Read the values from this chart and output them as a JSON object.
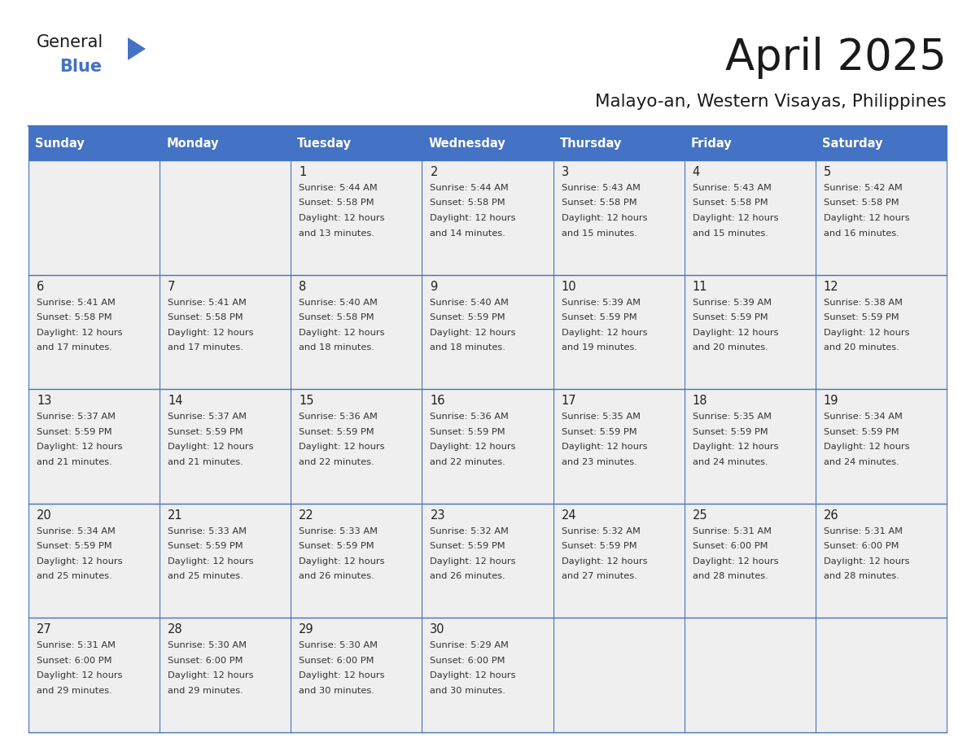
{
  "title": "April 2025",
  "subtitle": "Malayo-an, Western Visayas, Philippines",
  "days_of_week": [
    "Sunday",
    "Monday",
    "Tuesday",
    "Wednesday",
    "Thursday",
    "Friday",
    "Saturday"
  ],
  "header_bg": "#4472C4",
  "header_text": "#FFFFFF",
  "cell_bg": "#EFEFEF",
  "border_color": "#4472C4",
  "text_color": "#333333",
  "calendar": [
    [
      {
        "day": "",
        "sunrise": "",
        "sunset": "",
        "daylight": ""
      },
      {
        "day": "",
        "sunrise": "",
        "sunset": "",
        "daylight": ""
      },
      {
        "day": "1",
        "sunrise": "5:44 AM",
        "sunset": "5:58 PM",
        "daylight": "and 13 minutes."
      },
      {
        "day": "2",
        "sunrise": "5:44 AM",
        "sunset": "5:58 PM",
        "daylight": "and 14 minutes."
      },
      {
        "day": "3",
        "sunrise": "5:43 AM",
        "sunset": "5:58 PM",
        "daylight": "and 15 minutes."
      },
      {
        "day": "4",
        "sunrise": "5:43 AM",
        "sunset": "5:58 PM",
        "daylight": "and 15 minutes."
      },
      {
        "day": "5",
        "sunrise": "5:42 AM",
        "sunset": "5:58 PM",
        "daylight": "and 16 minutes."
      }
    ],
    [
      {
        "day": "6",
        "sunrise": "5:41 AM",
        "sunset": "5:58 PM",
        "daylight": "and 17 minutes."
      },
      {
        "day": "7",
        "sunrise": "5:41 AM",
        "sunset": "5:58 PM",
        "daylight": "and 17 minutes."
      },
      {
        "day": "8",
        "sunrise": "5:40 AM",
        "sunset": "5:58 PM",
        "daylight": "and 18 minutes."
      },
      {
        "day": "9",
        "sunrise": "5:40 AM",
        "sunset": "5:59 PM",
        "daylight": "and 18 minutes."
      },
      {
        "day": "10",
        "sunrise": "5:39 AM",
        "sunset": "5:59 PM",
        "daylight": "and 19 minutes."
      },
      {
        "day": "11",
        "sunrise": "5:39 AM",
        "sunset": "5:59 PM",
        "daylight": "and 20 minutes."
      },
      {
        "day": "12",
        "sunrise": "5:38 AM",
        "sunset": "5:59 PM",
        "daylight": "and 20 minutes."
      }
    ],
    [
      {
        "day": "13",
        "sunrise": "5:37 AM",
        "sunset": "5:59 PM",
        "daylight": "and 21 minutes."
      },
      {
        "day": "14",
        "sunrise": "5:37 AM",
        "sunset": "5:59 PM",
        "daylight": "and 21 minutes."
      },
      {
        "day": "15",
        "sunrise": "5:36 AM",
        "sunset": "5:59 PM",
        "daylight": "and 22 minutes."
      },
      {
        "day": "16",
        "sunrise": "5:36 AM",
        "sunset": "5:59 PM",
        "daylight": "and 22 minutes."
      },
      {
        "day": "17",
        "sunrise": "5:35 AM",
        "sunset": "5:59 PM",
        "daylight": "and 23 minutes."
      },
      {
        "day": "18",
        "sunrise": "5:35 AM",
        "sunset": "5:59 PM",
        "daylight": "and 24 minutes."
      },
      {
        "day": "19",
        "sunrise": "5:34 AM",
        "sunset": "5:59 PM",
        "daylight": "and 24 minutes."
      }
    ],
    [
      {
        "day": "20",
        "sunrise": "5:34 AM",
        "sunset": "5:59 PM",
        "daylight": "and 25 minutes."
      },
      {
        "day": "21",
        "sunrise": "5:33 AM",
        "sunset": "5:59 PM",
        "daylight": "and 25 minutes."
      },
      {
        "day": "22",
        "sunrise": "5:33 AM",
        "sunset": "5:59 PM",
        "daylight": "and 26 minutes."
      },
      {
        "day": "23",
        "sunrise": "5:32 AM",
        "sunset": "5:59 PM",
        "daylight": "and 26 minutes."
      },
      {
        "day": "24",
        "sunrise": "5:32 AM",
        "sunset": "5:59 PM",
        "daylight": "and 27 minutes."
      },
      {
        "day": "25",
        "sunrise": "5:31 AM",
        "sunset": "6:00 PM",
        "daylight": "and 28 minutes."
      },
      {
        "day": "26",
        "sunrise": "5:31 AM",
        "sunset": "6:00 PM",
        "daylight": "and 28 minutes."
      }
    ],
    [
      {
        "day": "27",
        "sunrise": "5:31 AM",
        "sunset": "6:00 PM",
        "daylight": "and 29 minutes."
      },
      {
        "day": "28",
        "sunrise": "5:30 AM",
        "sunset": "6:00 PM",
        "daylight": "and 29 minutes."
      },
      {
        "day": "29",
        "sunrise": "5:30 AM",
        "sunset": "6:00 PM",
        "daylight": "and 30 minutes."
      },
      {
        "day": "30",
        "sunrise": "5:29 AM",
        "sunset": "6:00 PM",
        "daylight": "and 30 minutes."
      },
      {
        "day": "",
        "sunrise": "",
        "sunset": "",
        "daylight": ""
      },
      {
        "day": "",
        "sunrise": "",
        "sunset": "",
        "daylight": ""
      },
      {
        "day": "",
        "sunrise": "",
        "sunset": "",
        "daylight": ""
      }
    ]
  ]
}
